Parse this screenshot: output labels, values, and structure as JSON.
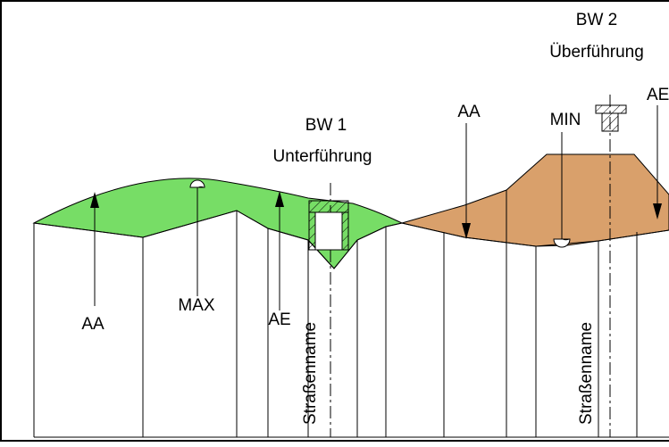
{
  "structures": {
    "bw1": {
      "id": "BW 1",
      "type": "Unterführung",
      "road": "Straßenname"
    },
    "bw2": {
      "id": "BW 2",
      "type": "Überführung",
      "road": "Straßenname"
    }
  },
  "markers": {
    "aa_left": "AA",
    "max": "MAX",
    "ae_left": "AE",
    "aa_right": "AA",
    "min": "MIN",
    "ae_right": "AE"
  },
  "colors": {
    "fill_area": "#77dd66",
    "cut_area": "#d9a06b",
    "line": "#000000",
    "background": "#ffffff"
  }
}
